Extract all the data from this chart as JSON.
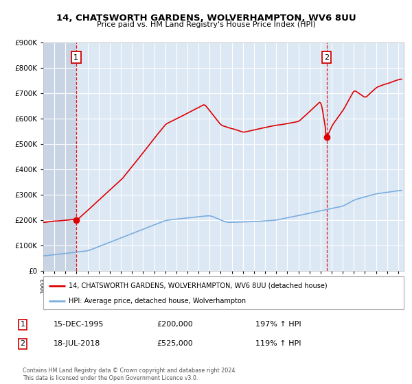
{
  "title": "14, CHATSWORTH GARDENS, WOLVERHAMPTON, WV6 8UU",
  "subtitle": "Price paid vs. HM Land Registry's House Price Index (HPI)",
  "sale1_date": "15-DEC-1995",
  "sale1_price": 200000,
  "sale1_label": "197% ↑ HPI",
  "sale2_date": "18-JUL-2018",
  "sale2_price": 525000,
  "sale2_label": "119% ↑ HPI",
  "sale1_year": 1995.96,
  "sale2_year": 2018.54,
  "legend_line1": "14, CHATSWORTH GARDENS, WOLVERHAMPTON, WV6 8UU (detached house)",
  "legend_line2": "HPI: Average price, detached house, Wolverhampton",
  "footer": "Contains HM Land Registry data © Crown copyright and database right 2024.\nThis data is licensed under the Open Government Licence v3.0.",
  "ylim": [
    0,
    900000
  ],
  "xlim_start": 1993,
  "xlim_end": 2025.5,
  "red_color": "#dd0000",
  "blue_color": "#7aadde",
  "dashed_color": "#dd0000",
  "plot_bg": "#dde8f5",
  "hatch_color": "#c8d4e4"
}
